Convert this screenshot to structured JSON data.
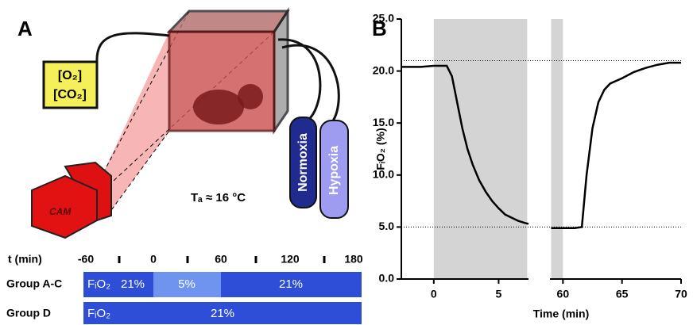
{
  "panel_a": {
    "label": "A",
    "sensor": [
      "[O₂]",
      "[CO₂]"
    ],
    "camera": "CAM",
    "cylinders": [
      "Normoxia",
      "Hypoxia"
    ],
    "temperature": "Tₐ ≈ 16 °C",
    "timeline": {
      "label": "t (min)",
      "ticks": [
        "-60",
        "0",
        "60",
        "120",
        "180"
      ]
    },
    "groups": [
      {
        "name": "Group A-C",
        "variable": "FᵢO₂",
        "segments": [
          "21%",
          "5%",
          "21%"
        ]
      },
      {
        "name": "Group D",
        "variable": "FᵢO₂",
        "segments": [
          "21%"
        ]
      }
    ]
  },
  "chart_data": {
    "type": "line",
    "label": "B",
    "ylabel": "FᵢO₂ (%)",
    "xlabel": "Time (min)",
    "ylim": [
      0,
      25
    ],
    "yticks": [
      {
        "value": 0,
        "label": "0.0"
      },
      {
        "value": 5,
        "label": "5.0"
      },
      {
        "value": 10,
        "label": "10.0"
      },
      {
        "value": 15,
        "label": "15.0"
      },
      {
        "value": 20,
        "label": "20.0"
      },
      {
        "value": 25,
        "label": "25.0"
      }
    ],
    "xlim": [
      -2.5,
      70
    ],
    "xbreak": [
      7.3,
      58.9
    ],
    "xticks": [
      0,
      5,
      60,
      65,
      70
    ],
    "shaded": [
      [
        0,
        7.2
      ],
      [
        59,
        60
      ]
    ],
    "hlines": [
      21,
      5
    ],
    "series": [
      {
        "color": "#000000",
        "x": [
          -2.5,
          -1,
          0,
          1,
          1.4,
          1.8,
          2.2,
          2.6,
          3,
          3.5,
          4,
          4.5,
          5,
          5.5,
          6,
          6.5,
          7,
          7.3,
          33,
          59,
          60,
          61,
          61.6,
          62,
          62.5,
          63,
          63.5,
          64,
          65,
          66,
          67,
          68,
          69,
          70
        ],
        "values": [
          20.4,
          20.4,
          20.5,
          20.5,
          19.5,
          17,
          14.5,
          12.5,
          11,
          9.5,
          8.4,
          7.5,
          6.8,
          6.2,
          5.9,
          5.6,
          5.4,
          5.3,
          null,
          4.9,
          4.9,
          4.9,
          5.0,
          10,
          14.5,
          17,
          18.2,
          18.8,
          19.3,
          19.9,
          20.3,
          20.6,
          20.8,
          20.8
        ]
      }
    ]
  }
}
